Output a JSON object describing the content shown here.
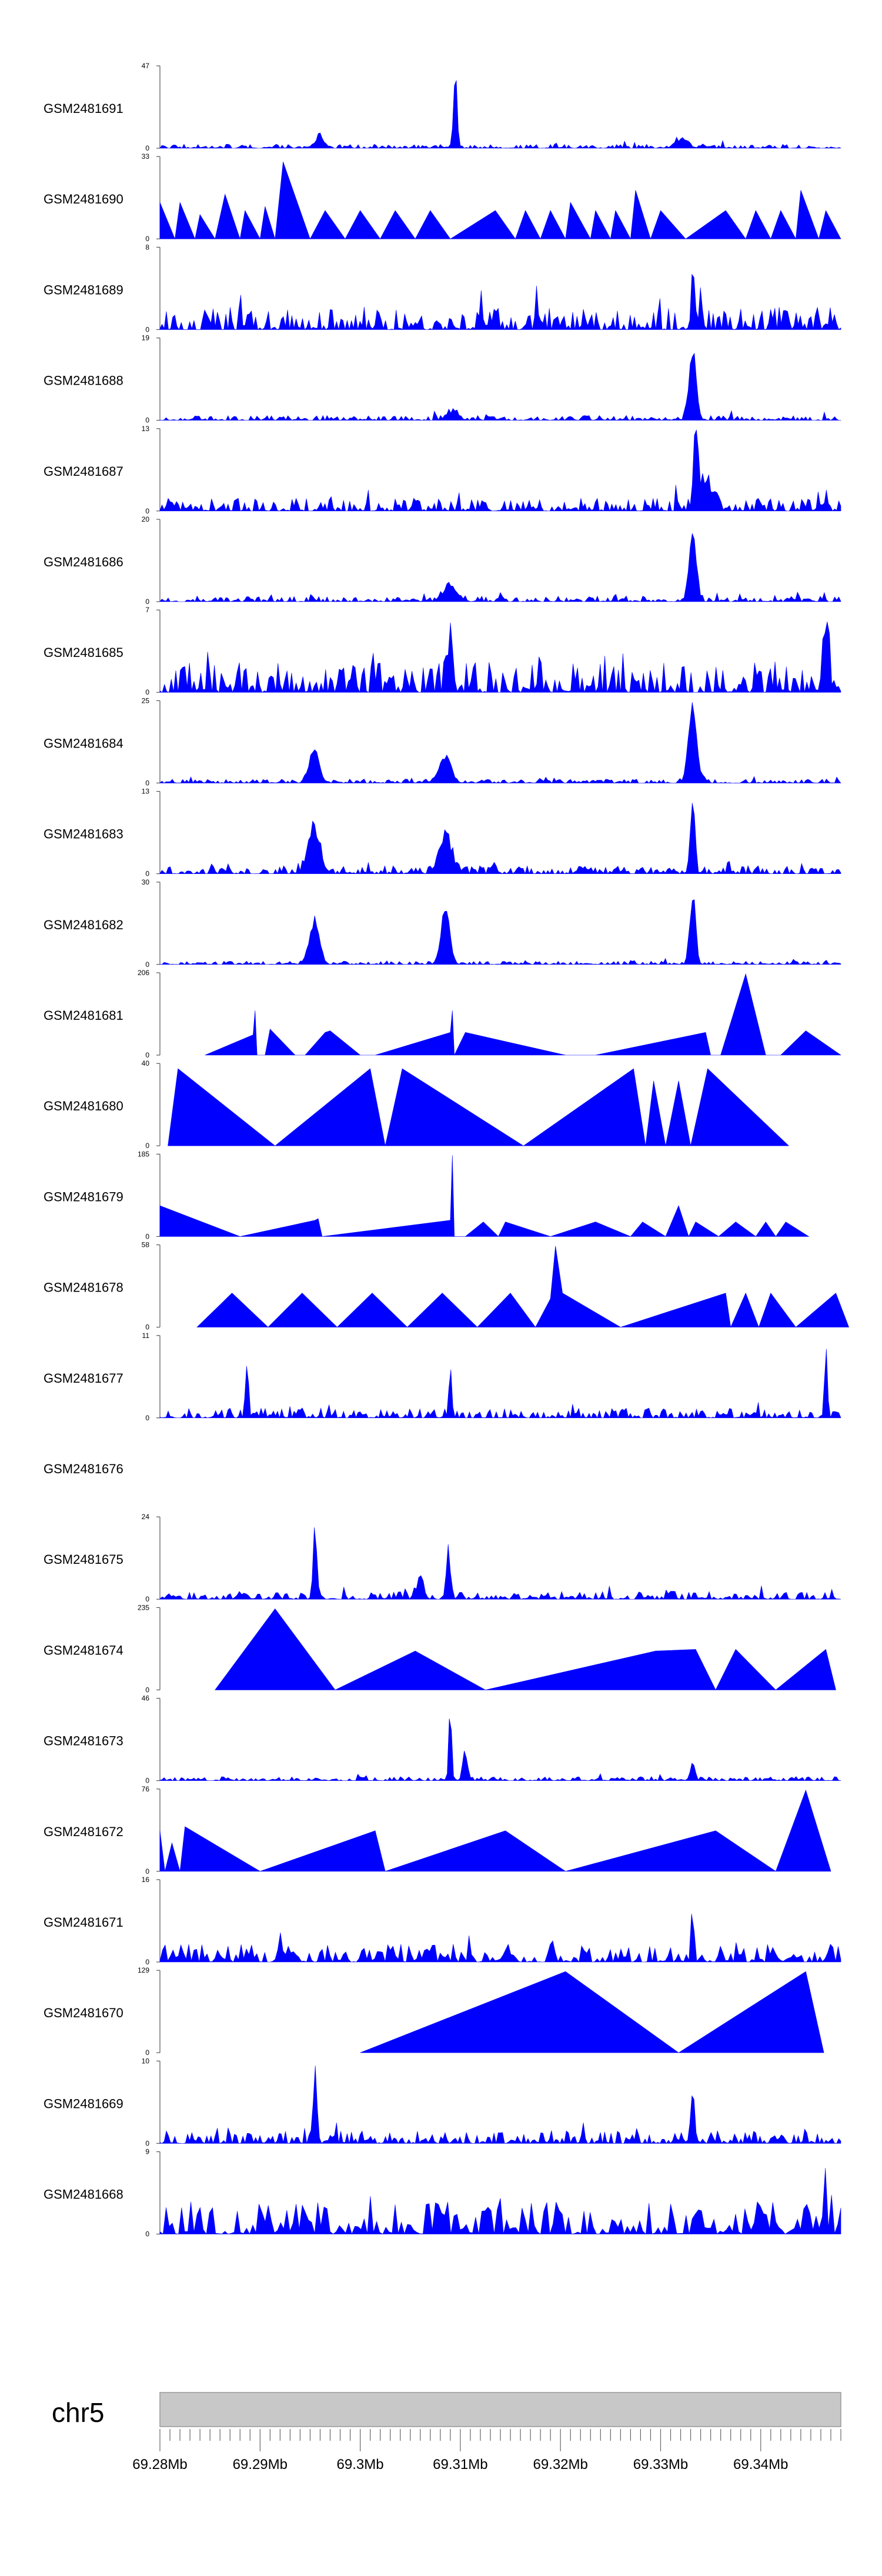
{
  "chart_data": {
    "type": "area",
    "title": "",
    "color": "#0000ff",
    "chromosome": "chr5",
    "x_range_mb": [
      69.28,
      69.348
    ],
    "x_ticks": [
      "69.28Mb",
      "69.29Mb",
      "69.3Mb",
      "69.31Mb",
      "69.32Mb",
      "69.33Mb",
      "69.34Mb"
    ],
    "tracks": [
      {
        "name": "GSM2481691",
        "ymax": 47,
        "ymin": 0,
        "style": "noise",
        "density": 340,
        "base": 0.05,
        "peaks": [
          [
            69.3095,
            1.0,
            0.00025
          ],
          [
            69.296,
            0.16,
            0.0006
          ],
          [
            69.332,
            0.12,
            0.0008
          ]
        ],
        "seed": 11
      },
      {
        "name": "GSM2481690",
        "ymax": 33,
        "ymin": 0,
        "style": "tri",
        "points": [
          [
            69.28,
            0.45
          ],
          [
            69.2815,
            0
          ],
          [
            69.282,
            0.45
          ],
          [
            69.2835,
            0
          ],
          [
            69.284,
            0.3
          ],
          [
            69.2855,
            0
          ],
          [
            69.2865,
            0.55
          ],
          [
            69.288,
            0
          ],
          [
            69.2885,
            0.35
          ],
          [
            69.29,
            0
          ],
          [
            69.2905,
            0.4
          ],
          [
            69.2915,
            0
          ],
          [
            69.2923,
            0.95
          ],
          [
            69.295,
            0
          ],
          [
            69.2965,
            0.35
          ],
          [
            69.2985,
            0
          ],
          [
            69.3,
            0.35
          ],
          [
            69.302,
            0
          ],
          [
            69.3035,
            0.35
          ],
          [
            69.3055,
            0
          ],
          [
            69.307,
            0.35
          ],
          [
            69.309,
            0
          ],
          [
            69.3135,
            0.35
          ],
          [
            69.3155,
            0
          ],
          [
            69.3165,
            0.35
          ],
          [
            69.318,
            0
          ],
          [
            69.319,
            0.35
          ],
          [
            69.3205,
            0
          ],
          [
            69.321,
            0.45
          ],
          [
            69.323,
            0
          ],
          [
            69.3235,
            0.35
          ],
          [
            69.325,
            0
          ],
          [
            69.3255,
            0.35
          ],
          [
            69.327,
            0
          ],
          [
            69.3275,
            0.6
          ],
          [
            69.329,
            0
          ],
          [
            69.33,
            0.35
          ],
          [
            69.3325,
            0
          ],
          [
            69.3365,
            0.35
          ],
          [
            69.3385,
            0
          ],
          [
            69.3395,
            0.35
          ],
          [
            69.341,
            0
          ],
          [
            69.342,
            0.35
          ],
          [
            69.3435,
            0
          ],
          [
            69.344,
            0.6
          ],
          [
            69.3458,
            0
          ],
          [
            69.3465,
            0.35
          ],
          [
            69.348,
            0
          ]
        ]
      },
      {
        "name": "GSM2481689",
        "ymax": 8,
        "ymin": 0,
        "style": "noise",
        "density": 320,
        "base": 0.28,
        "peaks": [
          [
            69.3332,
            1.0,
            0.0002
          ]
        ],
        "seed": 23
      },
      {
        "name": "GSM2481688",
        "ymax": 19,
        "ymin": 0,
        "style": "noise",
        "density": 330,
        "base": 0.06,
        "peaks": [
          [
            69.3332,
            1.0,
            0.0005
          ],
          [
            69.3092,
            0.12,
            0.0008
          ]
        ],
        "seed": 37
      },
      {
        "name": "GSM2481687",
        "ymax": 13,
        "ymin": 0,
        "style": "noise",
        "density": 330,
        "base": 0.16,
        "peaks": [
          [
            69.3335,
            1.0,
            0.0003
          ],
          [
            69.3345,
            0.4,
            0.001
          ]
        ],
        "seed": 41
      },
      {
        "name": "GSM2481686",
        "ymax": 20,
        "ymin": 0,
        "style": "noise",
        "density": 330,
        "base": 0.07,
        "peaks": [
          [
            69.3332,
            1.0,
            0.0005
          ],
          [
            69.309,
            0.2,
            0.001
          ]
        ],
        "seed": 53
      },
      {
        "name": "GSM2481685",
        "ymax": 7,
        "ymin": 0,
        "style": "noise",
        "density": 300,
        "base": 0.38,
        "peaks": [
          [
            69.309,
            0.9,
            0.0003
          ],
          [
            69.3465,
            1.0,
            0.0004
          ]
        ],
        "seed": 61
      },
      {
        "name": "GSM2481684",
        "ymax": 25,
        "ymin": 0,
        "style": "noise",
        "density": 330,
        "base": 0.05,
        "peaks": [
          [
            69.2954,
            0.4,
            0.0007
          ],
          [
            69.3085,
            0.35,
            0.0008
          ],
          [
            69.3332,
            1.0,
            0.0006
          ]
        ],
        "seed": 71
      },
      {
        "name": "GSM2481683",
        "ymax": 13,
        "ymin": 0,
        "style": "noise",
        "density": 330,
        "base": 0.1,
        "peaks": [
          [
            69.2954,
            0.65,
            0.0008
          ],
          [
            69.3085,
            0.5,
            0.0009
          ],
          [
            69.3332,
            1.0,
            0.0003
          ]
        ],
        "seed": 83
      },
      {
        "name": "GSM2481682",
        "ymax": 30,
        "ymin": 0,
        "style": "noise",
        "density": 330,
        "base": 0.04,
        "peaks": [
          [
            69.2954,
            0.6,
            0.0007
          ],
          [
            69.3085,
            0.8,
            0.0006
          ],
          [
            69.3332,
            1.0,
            0.0004
          ]
        ],
        "seed": 97
      },
      {
        "name": "GSM2481681",
        "ymax": 206,
        "ymin": 0,
        "style": "tri",
        "points": [
          [
            69.2845,
            0
          ],
          [
            69.2893,
            0.25
          ],
          [
            69.2895,
            0.55
          ],
          [
            69.2897,
            0
          ],
          [
            69.2905,
            0
          ],
          [
            69.291,
            0.32
          ],
          [
            69.2935,
            0
          ],
          [
            69.2945,
            0
          ],
          [
            69.2965,
            0.28
          ],
          [
            69.297,
            0.3
          ],
          [
            69.3,
            0
          ],
          [
            69.3015,
            0
          ],
          [
            69.309,
            0.28
          ],
          [
            69.3092,
            0.55
          ],
          [
            69.3094,
            0
          ],
          [
            69.3105,
            0.28
          ],
          [
            69.3205,
            0
          ],
          [
            69.3235,
            0
          ],
          [
            69.3345,
            0.28
          ],
          [
            69.335,
            0
          ],
          [
            69.336,
            0
          ],
          [
            69.3385,
            1.0
          ],
          [
            69.3405,
            0
          ],
          [
            69.342,
            0
          ],
          [
            69.3445,
            0.3
          ],
          [
            69.348,
            0
          ]
        ]
      },
      {
        "name": "GSM2481680",
        "ymax": 40,
        "ymin": 0,
        "style": "tri",
        "points": [
          [
            69.2808,
            0
          ],
          [
            69.2818,
            0.95
          ],
          [
            69.2915,
            0
          ],
          [
            69.301,
            0.95
          ],
          [
            69.3025,
            0
          ],
          [
            69.3042,
            0.95
          ],
          [
            69.3163,
            0
          ],
          [
            69.3273,
            0.95
          ],
          [
            69.3285,
            0
          ],
          [
            69.3293,
            0.8
          ],
          [
            69.3305,
            0
          ],
          [
            69.3318,
            0.8
          ],
          [
            69.333,
            0
          ],
          [
            69.3347,
            0.95
          ],
          [
            69.3428,
            0
          ]
        ]
      },
      {
        "name": "GSM2481679",
        "ymax": 185,
        "ymin": 0,
        "style": "tri",
        "points": [
          [
            69.28,
            0.38
          ],
          [
            69.288,
            0
          ],
          [
            69.2955,
            0.2
          ],
          [
            69.2958,
            0.22
          ],
          [
            69.2962,
            0
          ],
          [
            69.309,
            0.2
          ],
          [
            69.3092,
            1.0
          ],
          [
            69.3094,
            0
          ],
          [
            69.3105,
            0
          ],
          [
            69.3123,
            0.18
          ],
          [
            69.3138,
            0
          ],
          [
            69.3145,
            0.18
          ],
          [
            69.319,
            0
          ],
          [
            69.3235,
            0.18
          ],
          [
            69.327,
            0
          ],
          [
            69.3282,
            0.18
          ],
          [
            69.3305,
            0
          ],
          [
            69.3318,
            0.38
          ],
          [
            69.3328,
            0
          ],
          [
            69.3335,
            0.18
          ],
          [
            69.3358,
            0
          ],
          [
            69.3375,
            0.18
          ],
          [
            69.3395,
            0
          ],
          [
            69.3405,
            0.18
          ],
          [
            69.3415,
            0
          ],
          [
            69.3425,
            0.18
          ],
          [
            69.3448,
            0
          ]
        ]
      },
      {
        "name": "GSM2481678",
        "ymax": 58,
        "ymin": 0,
        "style": "tri",
        "points": [
          [
            69.2837,
            0
          ],
          [
            69.2872,
            0.42
          ],
          [
            69.2908,
            0
          ],
          [
            69.2942,
            0.42
          ],
          [
            69.2977,
            0
          ],
          [
            69.3012,
            0.42
          ],
          [
            69.3047,
            0
          ],
          [
            69.3082,
            0.42
          ],
          [
            69.3117,
            0
          ],
          [
            69.315,
            0.42
          ],
          [
            69.3175,
            0
          ],
          [
            69.319,
            0.35
          ],
          [
            69.3195,
            1.0
          ],
          [
            69.3202,
            0.42
          ],
          [
            69.326,
            0
          ],
          [
            69.3365,
            0.42
          ],
          [
            69.337,
            0
          ],
          [
            69.3385,
            0.42
          ],
          [
            69.3398,
            0
          ],
          [
            69.341,
            0.42
          ],
          [
            69.3435,
            0
          ],
          [
            69.3475,
            0.42
          ],
          [
            69.3488,
            0
          ]
        ]
      },
      {
        "name": "GSM2481677",
        "ymax": 11,
        "ymin": 0,
        "style": "noise",
        "density": 330,
        "base": 0.12,
        "peaks": [
          [
            69.2887,
            0.8,
            0.0002
          ],
          [
            69.309,
            0.65,
            0.0002
          ],
          [
            69.3465,
            1.0,
            0.0002
          ]
        ],
        "seed": 109
      },
      {
        "name": "GSM2481676",
        "ymax": null,
        "ymin": null,
        "style": "empty"
      },
      {
        "name": "GSM2481675",
        "ymax": 24,
        "ymin": 0,
        "style": "noise",
        "density": 300,
        "base": 0.1,
        "peaks": [
          [
            69.2955,
            1.0,
            0.00025
          ],
          [
            69.3088,
            0.7,
            0.0003
          ],
          [
            69.306,
            0.25,
            0.0005
          ]
        ],
        "seed": 127
      },
      {
        "name": "GSM2481674",
        "ymax": 235,
        "ymin": 0,
        "style": "tri",
        "points": [
          [
            69.2855,
            0
          ],
          [
            69.2915,
            1.0
          ],
          [
            69.2975,
            0
          ],
          [
            69.3055,
            0.48
          ],
          [
            69.3125,
            0
          ],
          [
            69.3295,
            0.48
          ],
          [
            69.3295,
            0.48
          ],
          [
            69.3335,
            0.5
          ],
          [
            69.3355,
            0
          ],
          [
            69.3375,
            0.5
          ],
          [
            69.3415,
            0
          ],
          [
            69.3465,
            0.5
          ],
          [
            69.3475,
            0
          ]
        ]
      },
      {
        "name": "GSM2481673",
        "ymax": 46,
        "ymin": 0,
        "style": "noise",
        "density": 320,
        "base": 0.05,
        "peaks": [
          [
            69.309,
            1.0,
            0.0002
          ],
          [
            69.3105,
            0.4,
            0.0003
          ],
          [
            69.3332,
            0.25,
            0.0003
          ]
        ],
        "seed": 139
      },
      {
        "name": "GSM2481672",
        "ymax": 76,
        "ymin": 0,
        "style": "tri",
        "points": [
          [
            69.28,
            0.5
          ],
          [
            69.2805,
            0
          ],
          [
            69.2812,
            0.35
          ],
          [
            69.282,
            0
          ],
          [
            69.2825,
            0.55
          ],
          [
            69.29,
            0
          ],
          [
            69.3015,
            0.5
          ],
          [
            69.3025,
            0
          ],
          [
            69.3145,
            0.5
          ],
          [
            69.3205,
            0
          ],
          [
            69.3355,
            0.5
          ],
          [
            69.3415,
            0
          ],
          [
            69.3445,
            1.0
          ],
          [
            69.347,
            0
          ]
        ]
      },
      {
        "name": "GSM2481671",
        "ymax": 16,
        "ymin": 0,
        "style": "noise",
        "density": 260,
        "base": 0.22,
        "peaks": [
          [
            69.3332,
            1.0,
            0.00015
          ]
        ],
        "seed": 151
      },
      {
        "name": "GSM2481670",
        "ymax": 129,
        "ymin": 0,
        "style": "tri",
        "points": [
          [
            69.3,
            0
          ],
          [
            69.3205,
            1.0
          ],
          [
            69.3318,
            0
          ],
          [
            69.3445,
            1.0
          ],
          [
            69.3463,
            0
          ]
        ]
      },
      {
        "name": "GSM2481669",
        "ymax": 10,
        "ymin": 0,
        "style": "noise",
        "density": 320,
        "base": 0.16,
        "peaks": [
          [
            69.2955,
            1.0,
            0.00025
          ],
          [
            69.3332,
            0.6,
            0.0003
          ]
        ],
        "seed": 163
      },
      {
        "name": "GSM2481668",
        "ymax": 9,
        "ymin": 0,
        "style": "noise",
        "density": 220,
        "base": 0.4,
        "peaks": [
          [
            69.3465,
            1.0,
            0.00015
          ]
        ],
        "seed": 173
      }
    ]
  }
}
